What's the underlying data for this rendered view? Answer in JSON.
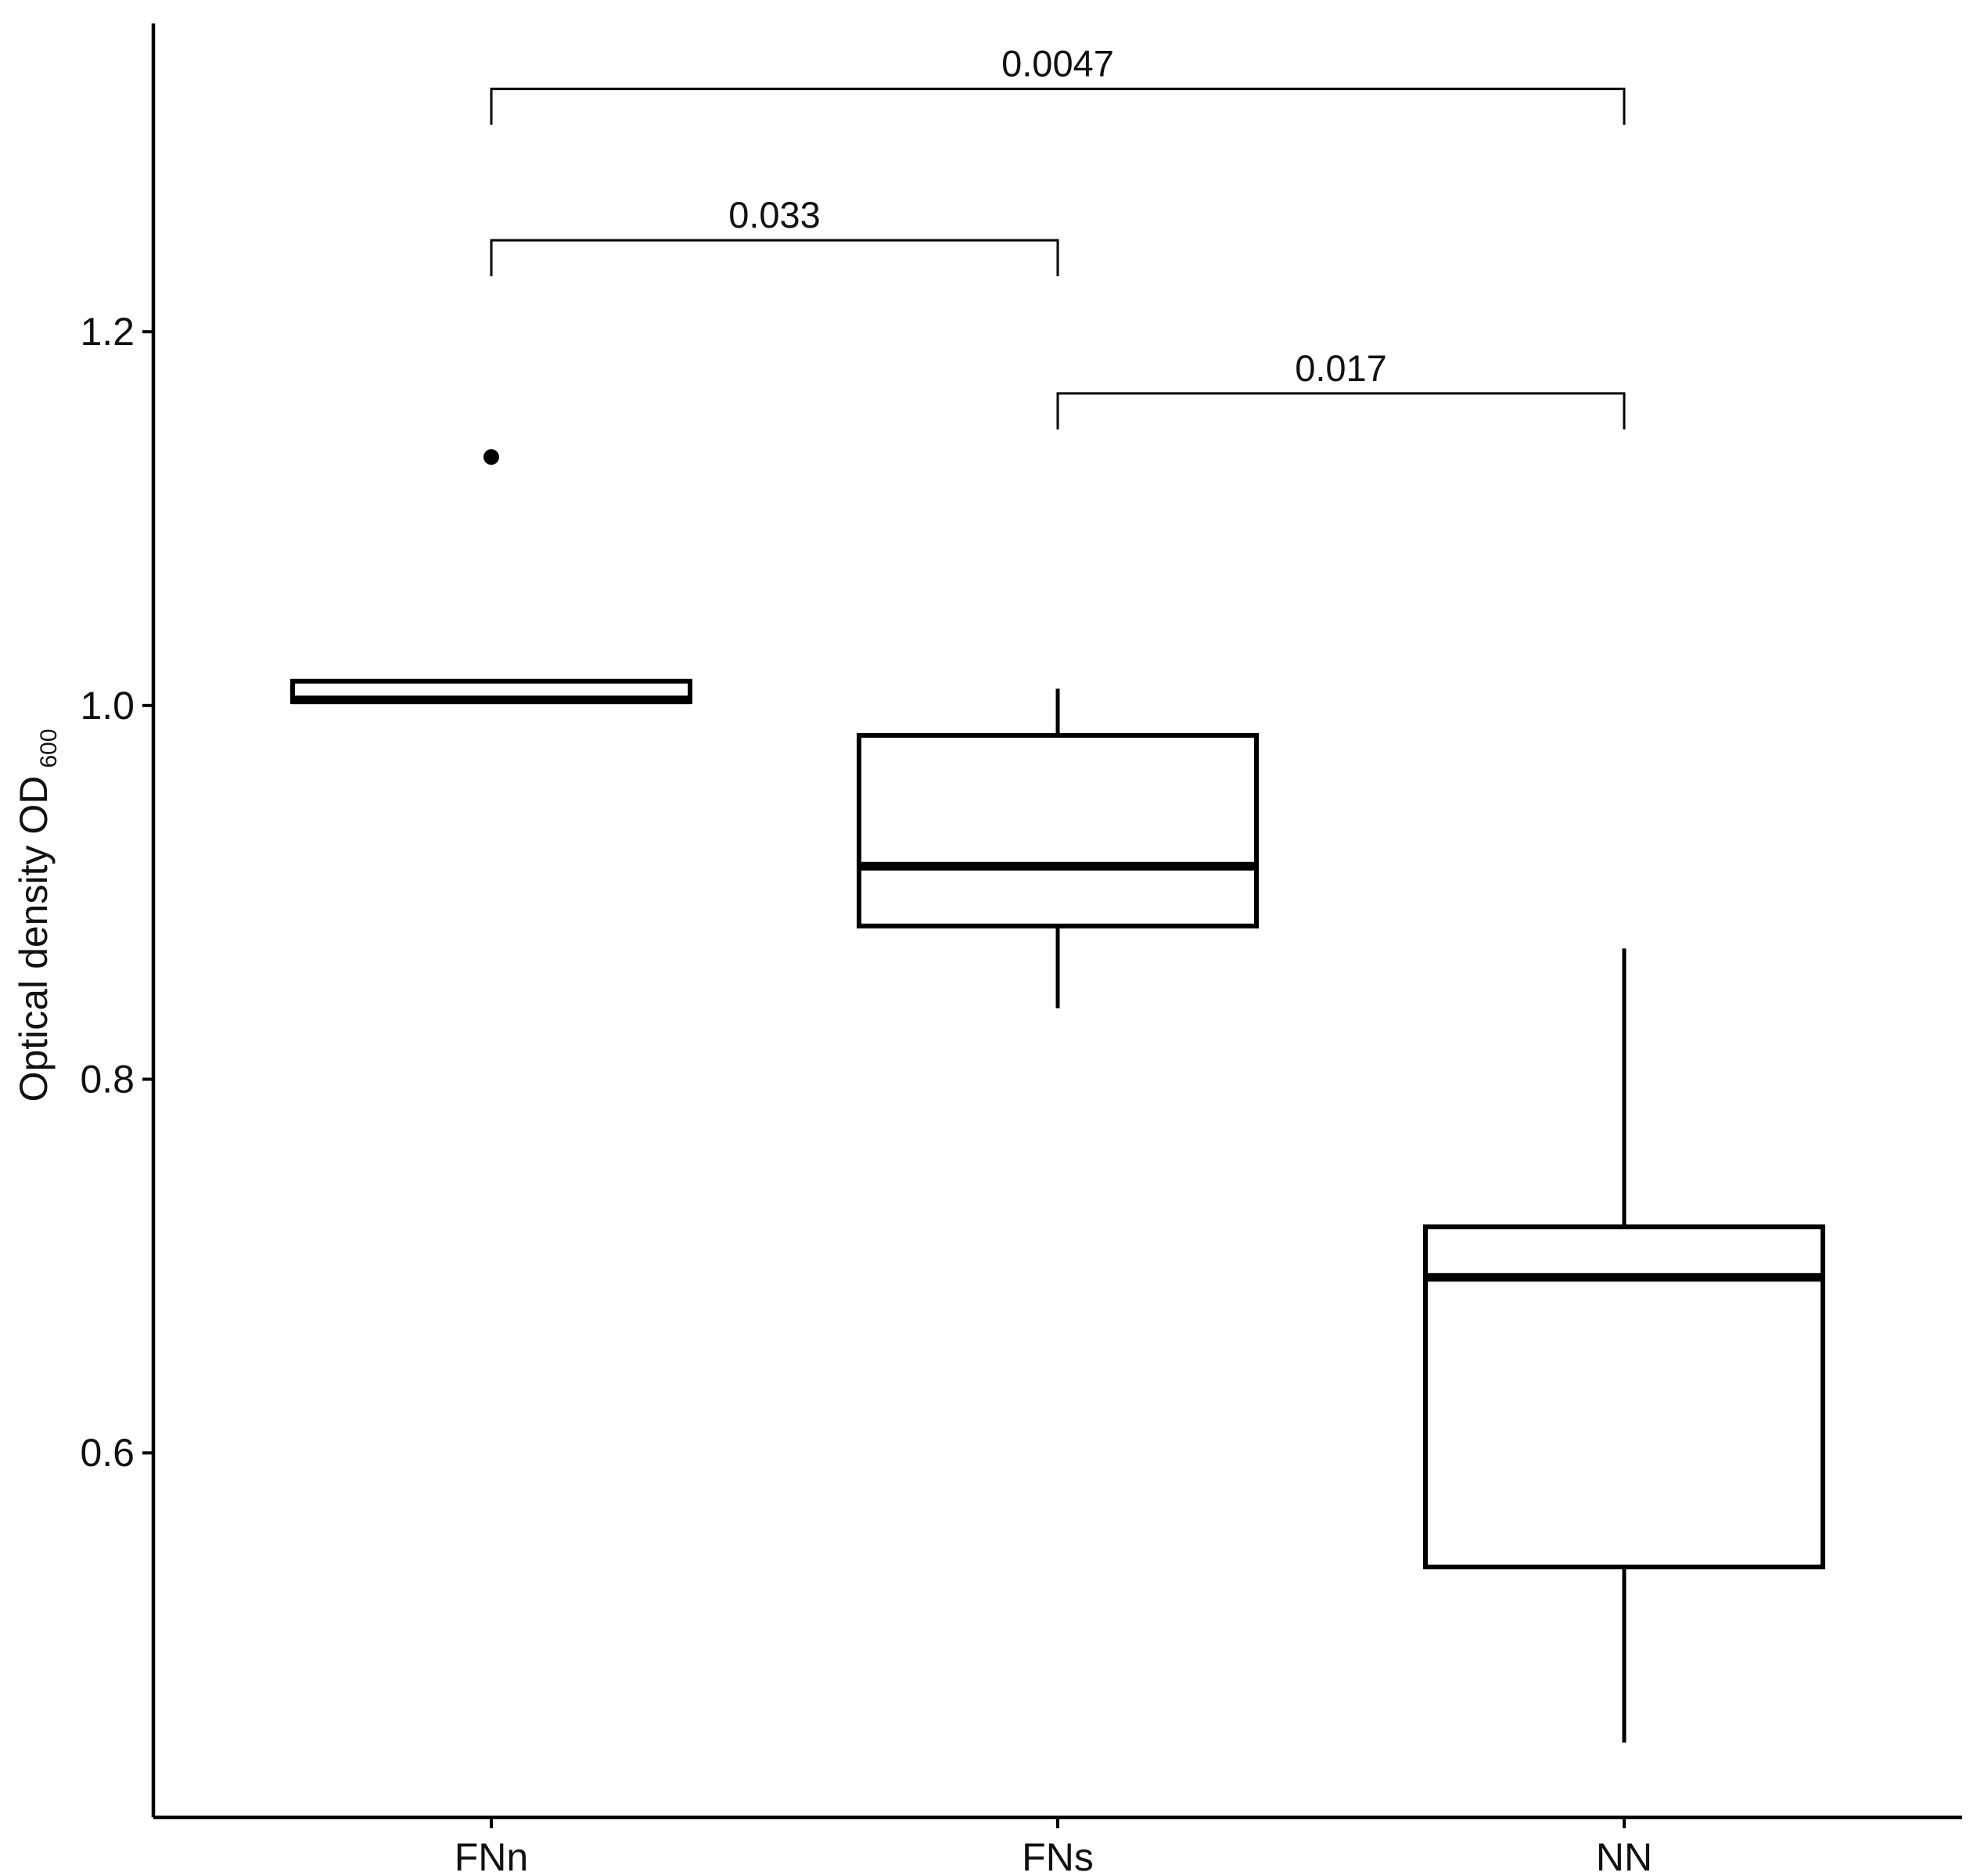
{
  "chart_data": {
    "type": "box",
    "title": "",
    "xlabel": "",
    "ylabel": "Optical density OD",
    "ylabel_subscript": "600",
    "categories": [
      "FNn",
      "FNs",
      "NN"
    ],
    "yticks": [
      "0.6",
      "0.8",
      "1.0",
      "1.2"
    ],
    "ytick_values": [
      0.6,
      0.8,
      1.0,
      1.2
    ],
    "ylim": [
      0.405,
      1.365
    ],
    "grid": false,
    "boxes": [
      {
        "category": "FNn",
        "whisker_low": 1.002,
        "q1": 1.002,
        "median": 1.003,
        "q3": 1.013,
        "whisker_high": 1.013,
        "outliers": [
          1.133
        ]
      },
      {
        "category": "FNs",
        "whisker_low": 0.838,
        "q1": 0.882,
        "median": 0.914,
        "q3": 0.984,
        "whisker_high": 1.009,
        "outliers": []
      },
      {
        "category": "NN",
        "whisker_low": 0.445,
        "q1": 0.539,
        "median": 0.694,
        "q3": 0.721,
        "whisker_high": 0.87,
        "outliers": []
      }
    ],
    "comparisons": [
      {
        "from": "FNn",
        "to": "FNs",
        "p_label": "0.033",
        "y": 1.249
      },
      {
        "from": "FNs",
        "to": "NN",
        "p_label": "0.017",
        "y": 1.167
      },
      {
        "from": "FNn",
        "to": "NN",
        "p_label": "0.0047",
        "y": 1.33
      }
    ]
  }
}
